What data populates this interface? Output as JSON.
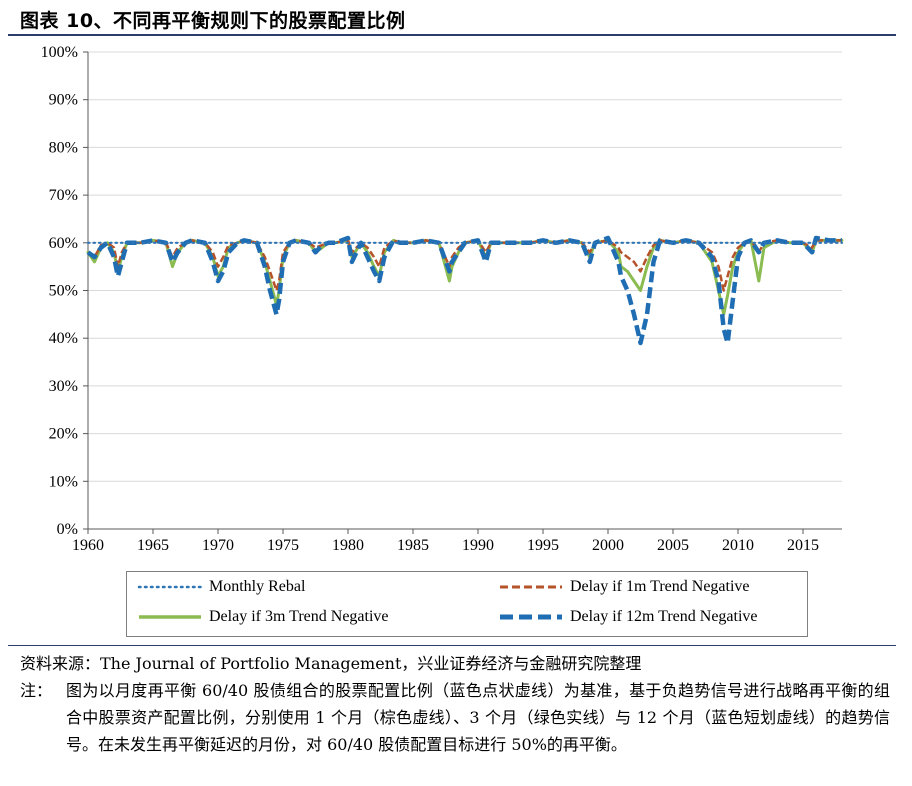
{
  "header": {
    "title": "图表 10、不同再平衡规则下的股票配置比例"
  },
  "source": "资料来源：The Journal of Portfolio Management，兴业证券经济与金融研究院整理",
  "note": {
    "label": "注：",
    "text": "图为以月度再平衡 60/40 股债组合的股票配置比例（蓝色点状虚线）为基准，基于负趋势信号进行战略再平衡的组合中股票资产配置比例，分别使用 1 个月（棕色虚线）、3 个月（绿色实线）与 12 个月（蓝色短划虚线）的趋势信号。在未发生再平衡延迟的月份，对 60/40 股债配置目标进行 50%的再平衡。"
  },
  "chart_data": {
    "type": "line",
    "title": "",
    "xlabel": "",
    "ylabel": "",
    "xlim": [
      1960,
      2018
    ],
    "ylim": [
      0,
      100
    ],
    "x_ticks": [
      "1960",
      "1965",
      "1970",
      "1975",
      "1980",
      "1985",
      "1990",
      "1995",
      "2000",
      "2005",
      "2010",
      "2015"
    ],
    "x_tick_values": [
      1960,
      1965,
      1970,
      1975,
      1980,
      1985,
      1990,
      1995,
      2000,
      2005,
      2010,
      2015
    ],
    "y_ticks": [
      "0%",
      "10%",
      "20%",
      "30%",
      "40%",
      "50%",
      "60%",
      "70%",
      "80%",
      "90%",
      "100%"
    ],
    "y_tick_values": [
      0,
      10,
      20,
      30,
      40,
      50,
      60,
      70,
      80,
      90,
      100
    ],
    "grid": "horizontal",
    "legend_position": "bottom",
    "series": [
      {
        "name": "Monthly Rebal",
        "color": "#2e75b6",
        "style": "dotted",
        "x": [
          1960,
          2018
        ],
        "y": [
          60,
          60
        ]
      },
      {
        "name": "Delay if 1m Trend Negative",
        "color": "#b5532b",
        "style": "dashed",
        "x": [
          1960,
          1960.5,
          1961,
          1961.5,
          1962,
          1962.3,
          1962.6,
          1963,
          1964,
          1965,
          1966,
          1966.5,
          1966.9,
          1967.5,
          1968,
          1969,
          1969.6,
          1970,
          1970.4,
          1970.8,
          1971.5,
          1972,
          1973,
          1973.6,
          1974,
          1974.5,
          1974.7,
          1975,
          1975.5,
          1976,
          1977,
          1977.5,
          1978,
          1978.5,
          1979,
          1980,
          1980.3,
          1981,
          1981.5,
          1982,
          1982.4,
          1982.8,
          1983.5,
          1984,
          1985,
          1986,
          1987,
          1987.8,
          1988,
          1988.5,
          1989,
          1990,
          1990.6,
          1991,
          1992,
          1993,
          1994,
          1995,
          1996,
          1997,
          1998,
          1998.6,
          1999,
          2000,
          2000.8,
          2001,
          2001.5,
          2002,
          2002.5,
          2003,
          2003.5,
          2004,
          2005,
          2006,
          2007,
          2008,
          2008.5,
          2008.9,
          2009.2,
          2009.6,
          2010,
          2010.5,
          2011,
          2011.6,
          2012,
          2013,
          2014,
          2015,
          2015.7,
          2016,
          2017,
          2018
        ],
        "y": [
          58,
          57,
          59.5,
          60,
          59,
          55,
          58,
          60,
          60,
          60.5,
          60,
          57,
          59,
          60,
          60.5,
          60,
          58,
          55,
          57,
          59.5,
          60,
          60.5,
          60,
          57,
          54,
          50,
          52,
          58,
          60,
          60.5,
          60,
          59,
          59.5,
          60,
          60,
          60.5,
          58,
          60,
          59,
          57,
          55,
          59,
          60.5,
          60,
          60,
          60.5,
          60,
          55,
          57,
          59,
          60,
          60.5,
          58,
          60,
          60,
          60,
          60,
          60.5,
          60,
          60.5,
          60,
          58,
          60,
          60.5,
          59,
          58,
          57,
          56,
          54,
          57,
          59.5,
          60.5,
          60,
          60.5,
          60,
          58,
          55,
          50,
          53,
          57,
          59,
          60,
          60.5,
          58,
          60,
          60.5,
          60,
          60,
          59,
          60.5,
          60.5,
          60.5
        ]
      },
      {
        "name": "Delay if 3m Trend Negative",
        "color": "#8bbc51",
        "style": "solid",
        "x": [
          1960,
          1960.5,
          1961,
          1961.5,
          1962,
          1962.3,
          1962.6,
          1963,
          1964,
          1965,
          1966,
          1966.5,
          1966.9,
          1967.5,
          1968,
          1969,
          1969.6,
          1970,
          1970.4,
          1970.8,
          1971.5,
          1972,
          1973,
          1973.6,
          1974,
          1974.5,
          1974.7,
          1975,
          1975.5,
          1976,
          1977,
          1977.5,
          1978,
          1978.5,
          1979,
          1980,
          1980.3,
          1981,
          1981.5,
          1982,
          1982.4,
          1982.8,
          1983.5,
          1984,
          1985,
          1986,
          1987,
          1987.8,
          1988,
          1988.5,
          1989,
          1990,
          1990.6,
          1991,
          1992,
          1993,
          1994,
          1995,
          1996,
          1997,
          1998,
          1998.6,
          1999,
          2000,
          2000.8,
          2001,
          2001.5,
          2002,
          2002.5,
          2003,
          2003.5,
          2004,
          2005,
          2006,
          2007,
          2008,
          2008.5,
          2008.9,
          2009.2,
          2009.6,
          2010,
          2010.5,
          2011,
          2011.6,
          2012,
          2013,
          2014,
          2015,
          2015.7,
          2016,
          2017,
          2018
        ],
        "y": [
          58,
          56,
          59,
          60,
          58,
          54,
          57,
          60,
          60,
          60.5,
          60,
          55,
          58,
          60,
          60.5,
          60,
          57,
          53,
          55,
          59,
          60,
          60.5,
          60,
          56,
          52,
          47,
          50,
          57,
          60,
          60.5,
          60,
          58,
          59,
          60,
          60,
          60.5,
          57,
          60,
          58,
          55,
          53,
          58,
          60.5,
          60,
          60,
          60.5,
          60,
          52,
          55,
          58,
          60,
          60.5,
          57,
          60,
          60,
          60,
          60,
          60.5,
          60,
          60.5,
          60,
          57,
          60,
          60.5,
          58,
          55,
          54,
          52,
          50,
          55,
          59,
          60.5,
          60,
          60.5,
          60,
          56,
          50,
          45,
          49,
          55,
          58,
          60,
          60.5,
          52,
          59,
          60.5,
          60,
          60,
          58,
          60.5,
          60.5,
          60.5
        ]
      },
      {
        "name": "Delay if 12m Trend Negative",
        "color": "#1f6db3",
        "style": "longdash",
        "x": [
          1960,
          1960.5,
          1961,
          1961.5,
          1962,
          1962.3,
          1962.6,
          1963,
          1964,
          1965,
          1966,
          1966.5,
          1966.9,
          1967.5,
          1968,
          1969,
          1969.6,
          1970,
          1970.4,
          1970.8,
          1971.5,
          1972,
          1973,
          1973.6,
          1974,
          1974.5,
          1974.7,
          1975,
          1975.5,
          1976,
          1977,
          1977.5,
          1978,
          1978.5,
          1979,
          1980,
          1980.3,
          1981,
          1981.5,
          1982,
          1982.4,
          1982.8,
          1983.5,
          1984,
          1985,
          1986,
          1987,
          1987.8,
          1988,
          1988.5,
          1989,
          1990,
          1990.6,
          1991,
          1992,
          1993,
          1994,
          1995,
          1996,
          1997,
          1998,
          1998.6,
          1999,
          2000,
          2000.8,
          2001,
          2001.5,
          2002,
          2002.5,
          2003,
          2003.5,
          2004,
          2005,
          2006,
          2007,
          2008,
          2008.5,
          2008.9,
          2009.2,
          2009.6,
          2010,
          2010.5,
          2011,
          2011.6,
          2012,
          2013,
          2014,
          2015,
          2015.7,
          2016,
          2017,
          2018
        ],
        "y": [
          58,
          57,
          59,
          60,
          57,
          53,
          56,
          60,
          60,
          60.5,
          60,
          56,
          58,
          60,
          60.5,
          60,
          56,
          52,
          54,
          58,
          60,
          60.5,
          60,
          55,
          50,
          45,
          48,
          56,
          60,
          60.5,
          60,
          58,
          59.5,
          60,
          60,
          61,
          56,
          60,
          57,
          54,
          52,
          57,
          60.5,
          60,
          60,
          60.5,
          60,
          54,
          56,
          58,
          60,
          60.5,
          56,
          60,
          60,
          60,
          60,
          60.5,
          60,
          60.5,
          60,
          56,
          60,
          61,
          56,
          53,
          50,
          45,
          39,
          45,
          56,
          60.5,
          60,
          60.5,
          60,
          57,
          52,
          42,
          39,
          48,
          57,
          60,
          60.5,
          58,
          60,
          60.5,
          60,
          60,
          58,
          61,
          60.5,
          60.5
        ]
      }
    ]
  }
}
